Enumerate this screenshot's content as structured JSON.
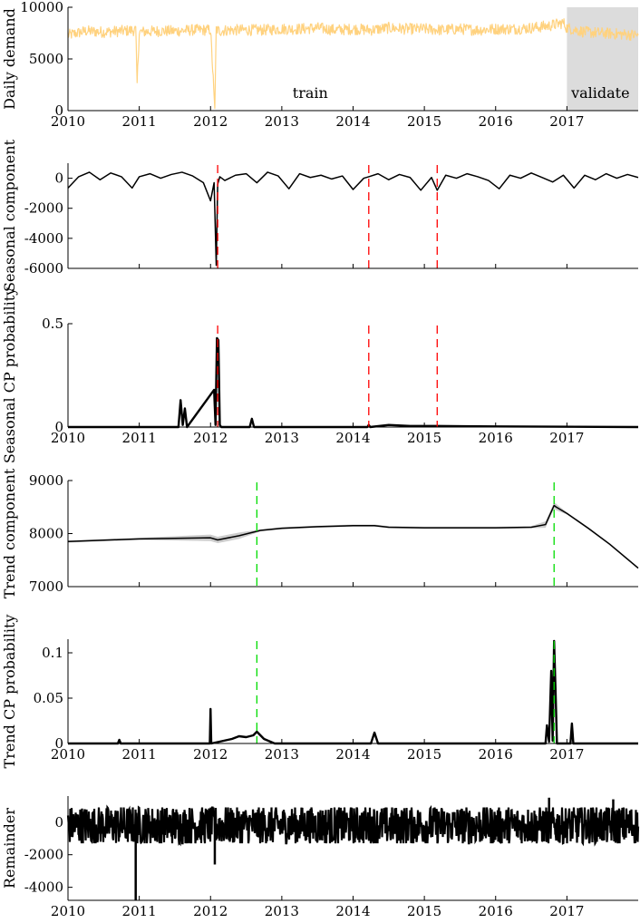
{
  "chart_data": [
    {
      "type": "line",
      "ylabel": "Daily demand",
      "xlim": [
        2010,
        2018
      ],
      "ylim": [
        0,
        10000
      ],
      "xticks": [
        "2010",
        "2011",
        "2012",
        "2013",
        "2014",
        "2015",
        "2016",
        "2017"
      ],
      "yticks": [
        "0",
        "5000",
        "10000"
      ],
      "annotations": [
        "train",
        "validate"
      ],
      "validate_start": 2017,
      "series_color": "#FFD27F",
      "series": [
        {
          "x": [
            2010.0,
            2010.25,
            2010.5,
            2010.75,
            2010.95,
            2010.97,
            2011.0,
            2011.25,
            2011.5,
            2011.75,
            2012.0,
            2012.06,
            2012.08,
            2012.12,
            2012.25,
            2012.5,
            2012.75,
            2013.0,
            2013.25,
            2013.5,
            2013.75,
            2014.0,
            2014.25,
            2014.5,
            2014.75,
            2015.0,
            2015.25,
            2015.5,
            2015.75,
            2016.0,
            2016.25,
            2016.5,
            2016.75,
            2016.95,
            2017.0,
            2017.25,
            2017.5,
            2017.75,
            2018.0
          ],
          "values": [
            7300,
            7700,
            7600,
            7700,
            7800,
            2700,
            7600,
            7700,
            7700,
            7800,
            7800,
            200,
            7900,
            7700,
            7800,
            7800,
            7800,
            7900,
            7900,
            8000,
            7800,
            7900,
            7800,
            8000,
            7900,
            7900,
            7800,
            7900,
            7800,
            7900,
            7900,
            8000,
            8200,
            8500,
            8000,
            7600,
            7500,
            7400,
            7300
          ]
        }
      ]
    },
    {
      "type": "line",
      "ylabel": "Seasonal component",
      "xlim": [
        2010,
        2018
      ],
      "ylim": [
        -6000,
        1000
      ],
      "yticks": [
        "-6000",
        "-4000",
        "-2000",
        "0"
      ],
      "changepoints": [
        2012.1,
        2014.22,
        2015.18
      ],
      "changepoint_color": "#FF0000",
      "series": [
        {
          "x": [
            2010.0,
            2010.15,
            2010.3,
            2010.45,
            2010.6,
            2010.75,
            2010.9,
            2011.0,
            2011.15,
            2011.3,
            2011.45,
            2011.6,
            2011.75,
            2011.9,
            2012.0,
            2012.05,
            2012.08,
            2012.1,
            2012.13,
            2012.2,
            2012.35,
            2012.5,
            2012.65,
            2012.8,
            2012.95,
            2013.1,
            2013.25,
            2013.4,
            2013.55,
            2013.7,
            2013.85,
            2014.0,
            2014.15,
            2014.22,
            2014.35,
            2014.5,
            2014.65,
            2014.8,
            2014.95,
            2015.1,
            2015.18,
            2015.3,
            2015.45,
            2015.6,
            2015.75,
            2015.9,
            2016.05,
            2016.2,
            2016.35,
            2016.5,
            2016.65,
            2016.8,
            2016.95,
            2017.1,
            2017.25,
            2017.4,
            2017.55,
            2017.7,
            2017.85,
            2018.0
          ],
          "values": [
            -650,
            100,
            400,
            -100,
            350,
            100,
            -650,
            100,
            300,
            0,
            250,
            400,
            150,
            -300,
            -1500,
            -300,
            -5800,
            -400,
            100,
            -150,
            200,
            300,
            -300,
            400,
            150,
            -700,
            300,
            50,
            200,
            -50,
            150,
            -750,
            0,
            100,
            300,
            -100,
            250,
            50,
            -800,
            50,
            -800,
            200,
            0,
            300,
            100,
            -150,
            -700,
            200,
            0,
            350,
            50,
            -250,
            200,
            -650,
            200,
            -100,
            300,
            0,
            250,
            50
          ]
        }
      ]
    },
    {
      "type": "line",
      "ylabel": "Seasonal CP probability",
      "xlim": [
        2010,
        2018
      ],
      "ylim": [
        0,
        0.5
      ],
      "xticks": [
        "2010",
        "2011",
        "2012",
        "2013",
        "2014",
        "2015",
        "2016",
        "2017"
      ],
      "yticks": [
        "0",
        "0.5"
      ],
      "changepoints": [
        2012.1,
        2014.22,
        2015.18
      ],
      "changepoint_color": "#FF0000",
      "series": [
        {
          "x": [
            2010.0,
            2011.55,
            2011.58,
            2011.61,
            2011.64,
            2011.67,
            2012.05,
            2012.07,
            2012.09,
            2012.11,
            2012.13,
            2012.15,
            2012.55,
            2012.58,
            2012.61,
            2014.2,
            2014.22,
            2014.24,
            2014.5,
            2014.8,
            2015.18,
            2016.0,
            2018.0
          ],
          "values": [
            0,
            0,
            0.13,
            0.01,
            0.09,
            0,
            0.18,
            0.01,
            0.43,
            0.42,
            0.01,
            0,
            0,
            0.04,
            0,
            0,
            0.01,
            0,
            0.01,
            0.005,
            0.005,
            0.003,
            0
          ]
        }
      ]
    },
    {
      "type": "line",
      "ylabel": "Trend component",
      "xlim": [
        2010,
        2018
      ],
      "ylim": [
        7000,
        9000
      ],
      "yticks": [
        "7000",
        "8000",
        "9000"
      ],
      "changepoints": [
        2012.65,
        2016.82
      ],
      "changepoint_color": "#00DD00",
      "band_color": "#CCCCCC",
      "series": [
        {
          "x": [
            2010.0,
            2011.0,
            2012.0,
            2012.1,
            2012.4,
            2012.7,
            2013.0,
            2013.5,
            2014.0,
            2014.3,
            2014.5,
            2015.0,
            2015.5,
            2016.0,
            2016.5,
            2016.7,
            2016.82,
            2016.85,
            2017.0,
            2017.3,
            2017.6,
            2018.0
          ],
          "values": [
            7850,
            7900,
            7920,
            7880,
            7960,
            8060,
            8100,
            8130,
            8150,
            8150,
            8120,
            8110,
            8110,
            8110,
            8120,
            8170,
            8530,
            8500,
            8380,
            8100,
            7800,
            7350
          ]
        }
      ]
    },
    {
      "type": "line",
      "ylabel": "Trend CP probability",
      "xlim": [
        2010,
        2018
      ],
      "ylim": [
        0,
        0.115
      ],
      "xticks": [
        "2010",
        "2011",
        "2012",
        "2013",
        "2014",
        "2015",
        "2016",
        "2017"
      ],
      "yticks": [
        "0",
        "0.05",
        "0.1"
      ],
      "changepoints": [
        2012.65,
        2016.82
      ],
      "changepoint_color": "#00DD00",
      "series": [
        {
          "x": [
            2010.0,
            2010.7,
            2010.72,
            2010.74,
            2011.99,
            2012.0,
            2012.01,
            2012.3,
            2012.4,
            2012.5,
            2012.6,
            2012.65,
            2012.75,
            2012.9,
            2014.25,
            2014.3,
            2014.35,
            2016.0,
            2016.7,
            2016.72,
            2016.75,
            2016.78,
            2016.8,
            2016.82,
            2016.84,
            2016.86,
            2017.05,
            2017.07,
            2017.09,
            2018.0
          ],
          "values": [
            0,
            0,
            0.004,
            0,
            0,
            0.038,
            0,
            0.005,
            0.008,
            0.007,
            0.009,
            0.013,
            0.005,
            0,
            0,
            0.012,
            0,
            0,
            0,
            0.02,
            0.002,
            0.08,
            0.003,
            0.113,
            0.06,
            0,
            0,
            0.022,
            0,
            0
          ]
        }
      ]
    },
    {
      "type": "line",
      "ylabel": "Remainder",
      "xlim": [
        2010,
        2018
      ],
      "ylim": [
        -4800,
        1600
      ],
      "xticks": [
        "2010",
        "2011",
        "2012",
        "2013",
        "2014",
        "2015",
        "2016",
        "2017"
      ],
      "yticks": [
        "-4000",
        "-2000",
        "0"
      ],
      "spikes": [
        {
          "x": 2010.95,
          "value": -4800
        },
        {
          "x": 2012.06,
          "value": -2600
        },
        {
          "x": 2016.75,
          "value": 1500
        },
        {
          "x": 2017.65,
          "value": 1400
        }
      ]
    }
  ]
}
